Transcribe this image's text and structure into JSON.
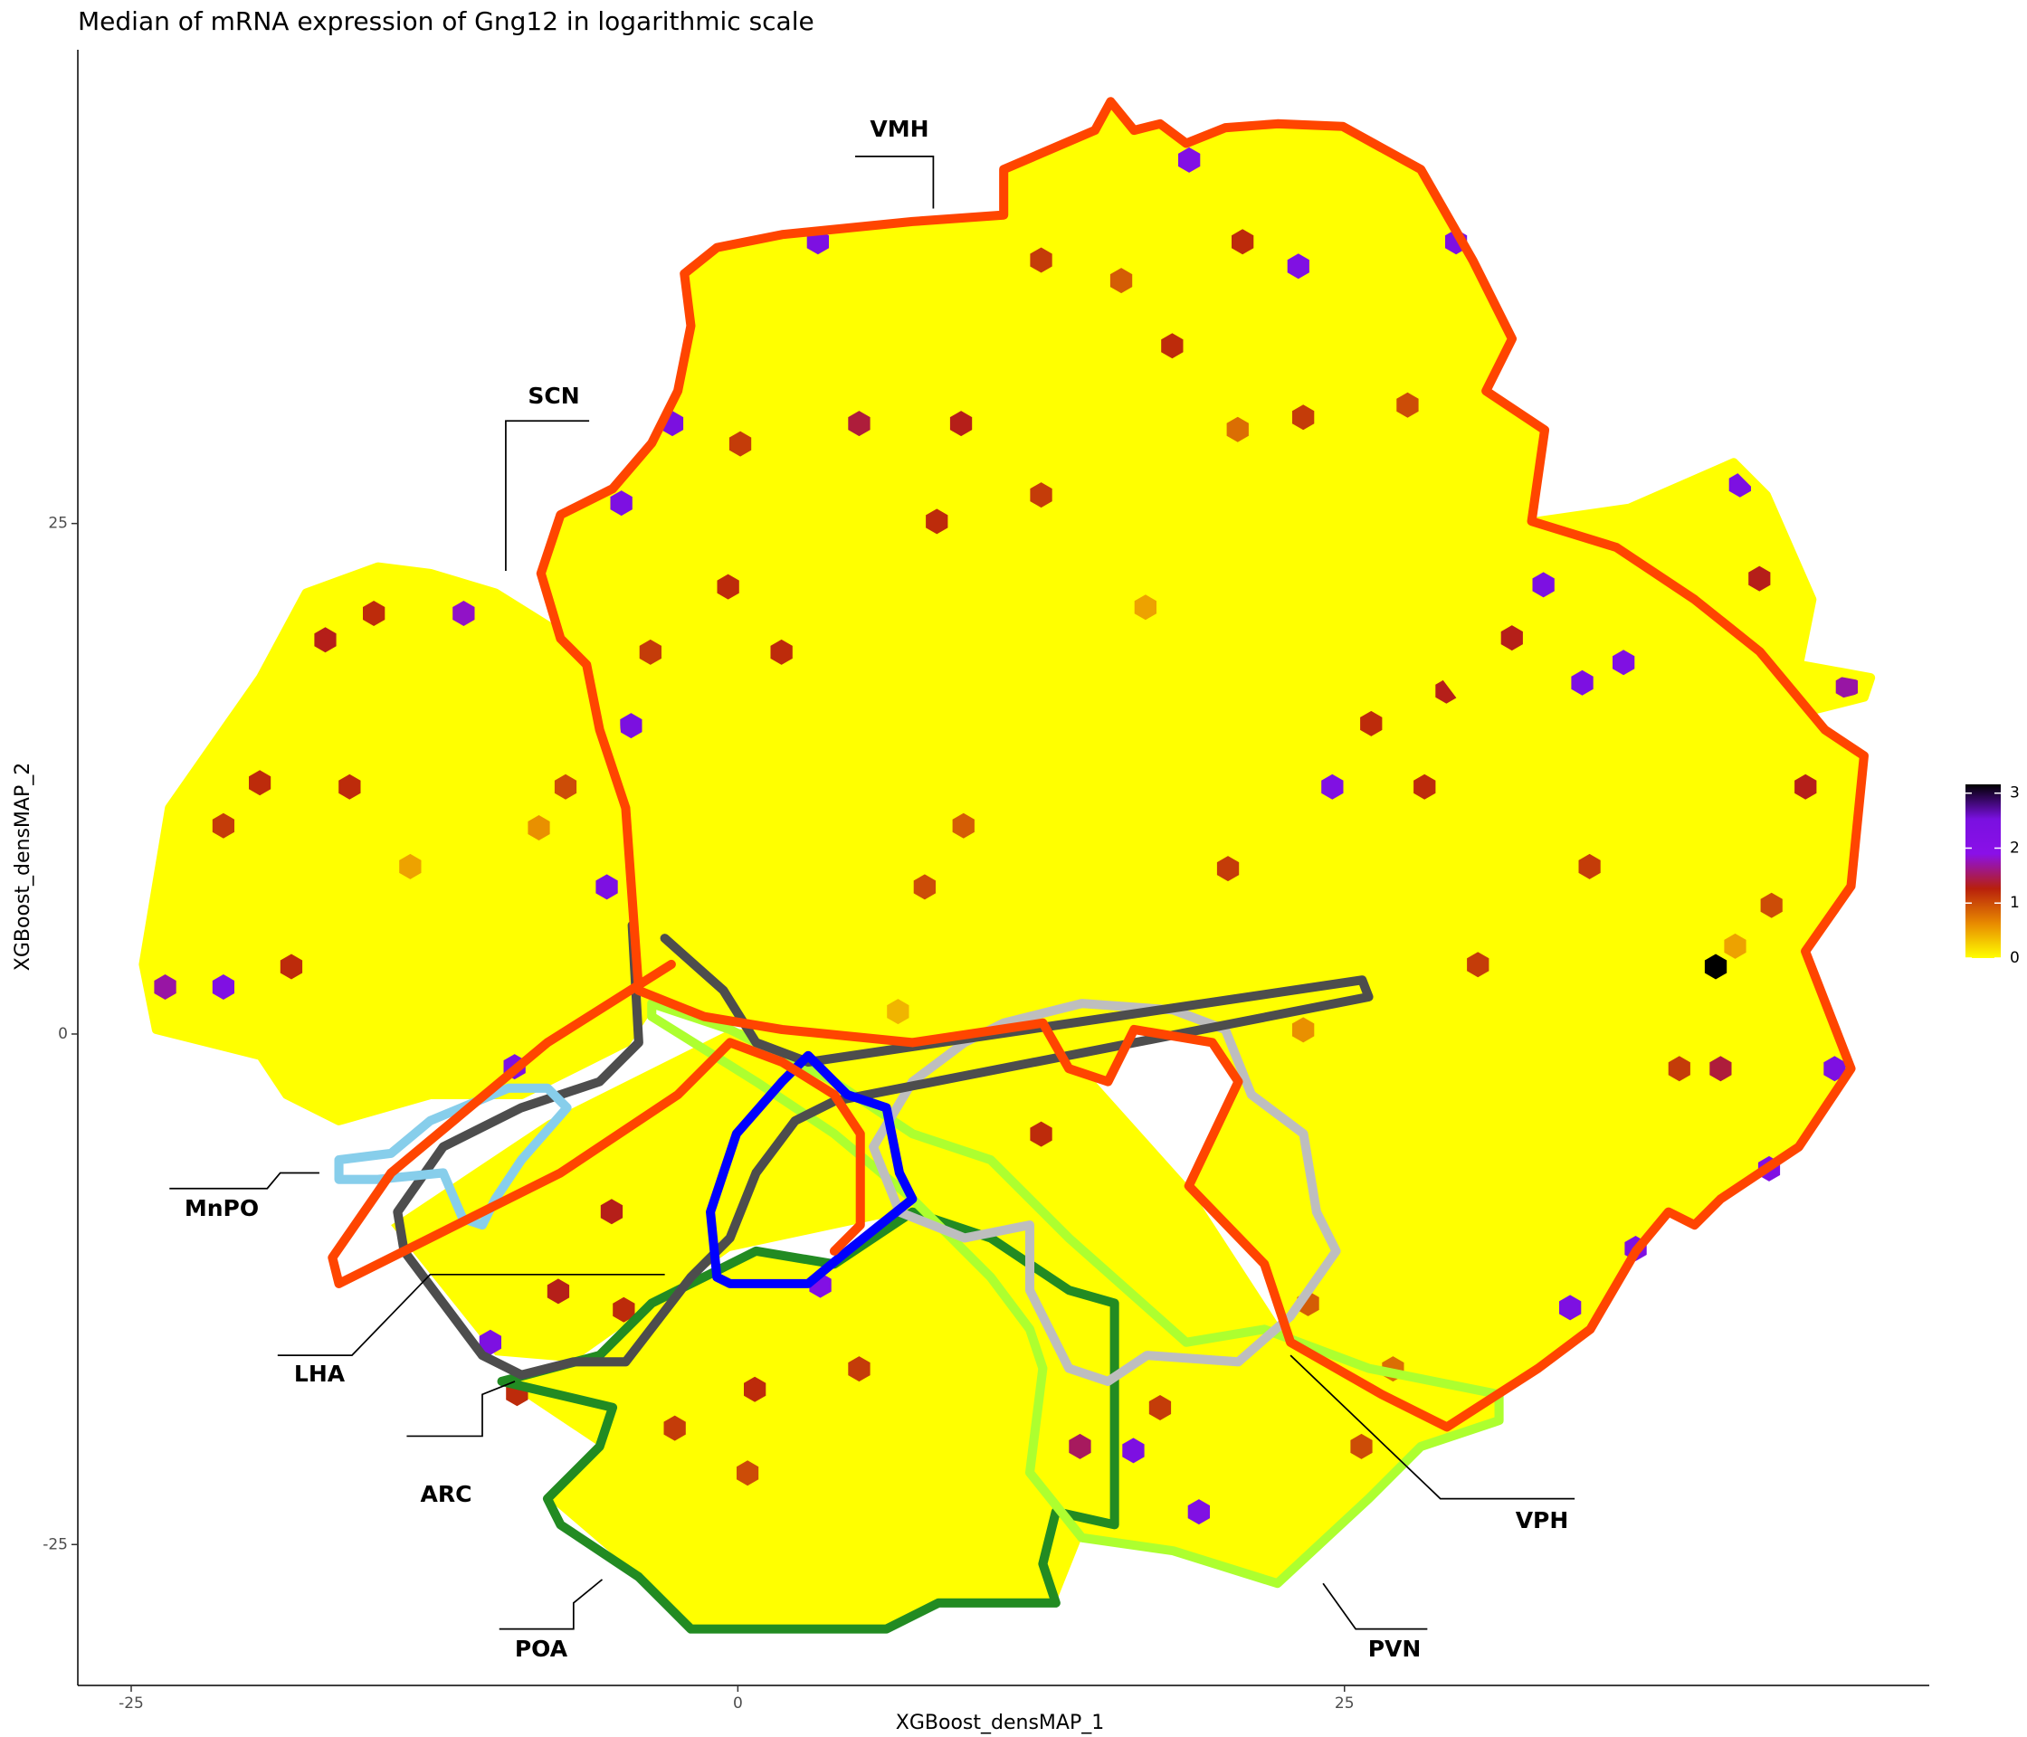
{
  "chart_data": {
    "type": "hexbin",
    "title": "Median of mRNA expression of Gng12 in logarithmic scale",
    "x_label": "XGBoost_densMAP_1",
    "y_label": "XGBoost_densMAP_2",
    "xlim": [
      -27.2,
      49.1
    ],
    "ylim": [
      -31.9,
      48.2
    ],
    "xticks": [
      -25,
      0,
      25
    ],
    "yticks": [
      -25,
      0,
      25
    ],
    "colorbar": {
      "lim": [
        0,
        3.16
      ],
      "ticks": [
        0,
        1,
        2,
        3
      ],
      "colors": [
        "#ffff00",
        "#e88a00",
        "#b8200c",
        "#8a10e8",
        "#7a10e0",
        "#000000"
      ]
    },
    "regions": [
      "VMH",
      "SCN",
      "MnPO",
      "LHA",
      "ARC",
      "POA",
      "VPH",
      "PVN"
    ],
    "x": [
      18.6,
      3.3,
      23.1,
      29.6,
      -2.7,
      -4.8,
      41.3,
      24.5,
      45.7,
      40.3,
      45.2,
      42.5,
      34.3,
      16.3,
      19.0,
      -9.2,
      -21.2,
      -23.6,
      -11.3,
      -4.4,
      -5.4,
      -10.2,
      3.4,
      37.0,
      33.2,
      34.8,
      36.5,
      44.0,
      20.8,
      12.5,
      5.0,
      9.2,
      0.1,
      35.1,
      42.6,
      30.5,
      -18.4,
      -21.2,
      -16.0,
      -7.1,
      9.3,
      7.7,
      20.2,
      26.1,
      28.3,
      5.0,
      0.7,
      0.4,
      -2.6,
      14.1,
      17.4,
      25.7,
      27.0,
      23.5,
      12.5,
      -5.2,
      -7.4,
      -4.7,
      -9.1,
      42.1,
      40.5,
      38.8,
      29.2,
      31.9,
      -15.0,
      -17.0,
      -19.7,
      8.2,
      12.5,
      23.3,
      27.6,
      17.9,
      15.8,
      20.6,
      -0.4,
      -3.6,
      1.8,
      -13.5,
      -8.2,
      23.3,
      16.8,
      6.6,
      41.1
    ],
    "y": [
      42.8,
      38.8,
      37.6,
      38.8,
      29.9,
      26.0,
      26.9,
      12.1,
      17.0,
      3.3,
      -1.7,
      -6.6,
      -13.4,
      -20.4,
      -23.4,
      -1.6,
      2.3,
      2.3,
      20.6,
      15.1,
      7.2,
      -15.1,
      -12.3,
      -10.5,
      22.0,
      17.2,
      18.2,
      12.1,
      38.8,
      37.9,
      29.9,
      29.9,
      28.9,
      8.2,
      6.3,
      3.4,
      3.3,
      10.2,
      12.1,
      12.1,
      10.2,
      7.2,
      8.1,
      15.2,
      12.1,
      -16.4,
      -17.4,
      -21.5,
      -19.3,
      -20.2,
      -18.3,
      -20.2,
      -16.4,
      -13.2,
      -4.9,
      -8.7,
      -12.6,
      -13.5,
      -17.6,
      22.3,
      -1.7,
      -1.7,
      16.8,
      19.4,
      20.6,
      19.3,
      12.3,
      25.1,
      26.4,
      30.2,
      30.8,
      33.7,
      36.9,
      29.6,
      21.9,
      18.7,
      18.7,
      8.2,
      10.1,
      0.2,
      20.9,
      1.1,
      4.3
    ],
    "values": [
      2.2,
      2.4,
      2.3,
      2.4,
      2.5,
      2.4,
      2.4,
      2.3,
      1.7,
      3.2,
      2.4,
      2.3,
      2.4,
      2.4,
      2.3,
      2.4,
      2.3,
      1.7,
      1.8,
      2.5,
      2.4,
      2.4,
      2.2,
      2.4,
      2.4,
      2.4,
      2.3,
      1.3,
      1.2,
      1.1,
      1.4,
      1.3,
      1.1,
      1.1,
      1.0,
      1.1,
      1.2,
      1.1,
      1.2,
      1.0,
      0.9,
      1.0,
      1.1,
      1.2,
      1.2,
      1.1,
      1.2,
      1.0,
      1.1,
      1.5,
      1.1,
      1.0,
      0.8,
      0.9,
      1.2,
      1.3,
      1.3,
      1.2,
      1.2,
      1.3,
      1.4,
      1.1,
      1.3,
      1.3,
      1.2,
      1.3,
      1.2,
      1.2,
      1.1,
      1.1,
      1.0,
      1.2,
      0.9,
      0.8,
      1.2,
      1.1,
      1.2,
      0.5,
      0.6,
      0.6,
      0.5,
      0.4,
      0.5
    ]
  }
}
